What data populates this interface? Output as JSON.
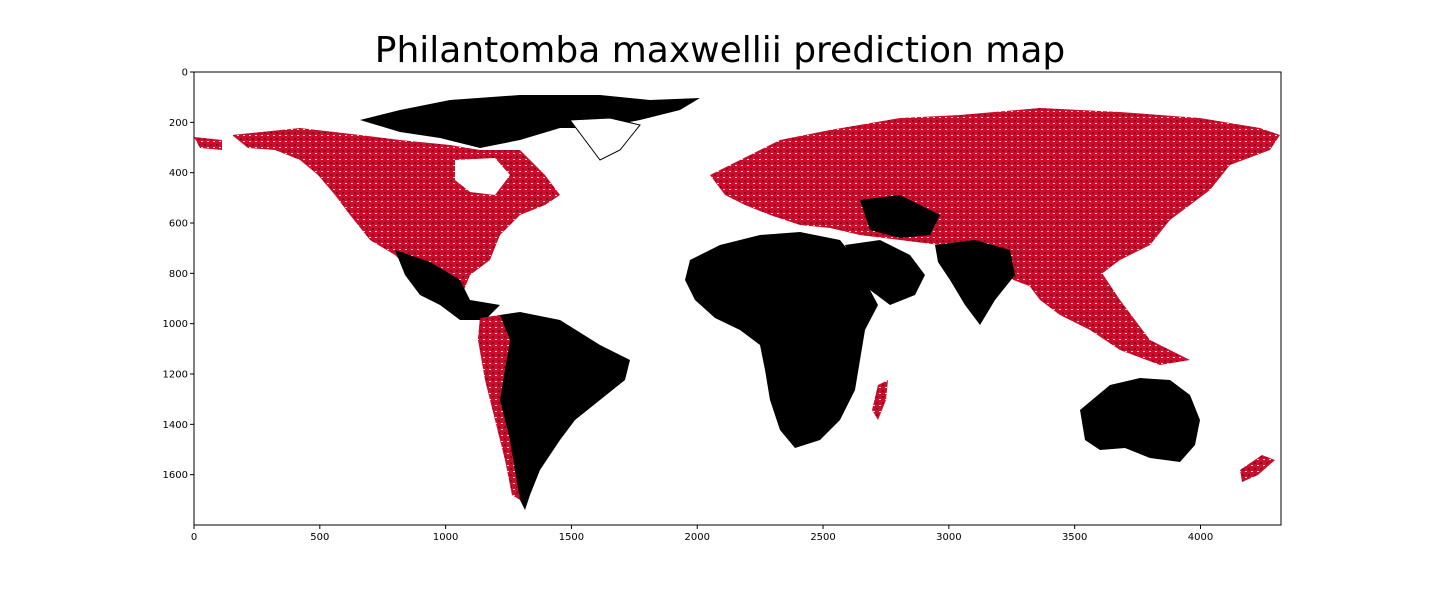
{
  "title": "Philantomba maxwellii prediction map",
  "colors": {
    "background": "#ffffff",
    "land_high": "#000000",
    "land_mid": "#c8102e",
    "land_low": "#f2ecd8"
  },
  "chart_data": {
    "type": "heatmap",
    "title": "Philantomba maxwellii prediction map",
    "xlabel": "",
    "ylabel": "",
    "xlim": [
      0,
      4320
    ],
    "ylim": [
      1800,
      0
    ],
    "xticks": [
      0,
      500,
      1000,
      1500,
      2000,
      2500,
      3000,
      3500,
      4000
    ],
    "yticks": [
      0,
      200,
      400,
      600,
      800,
      1000,
      1200,
      1400,
      1600
    ],
    "grid": false,
    "legend": "none"
  }
}
